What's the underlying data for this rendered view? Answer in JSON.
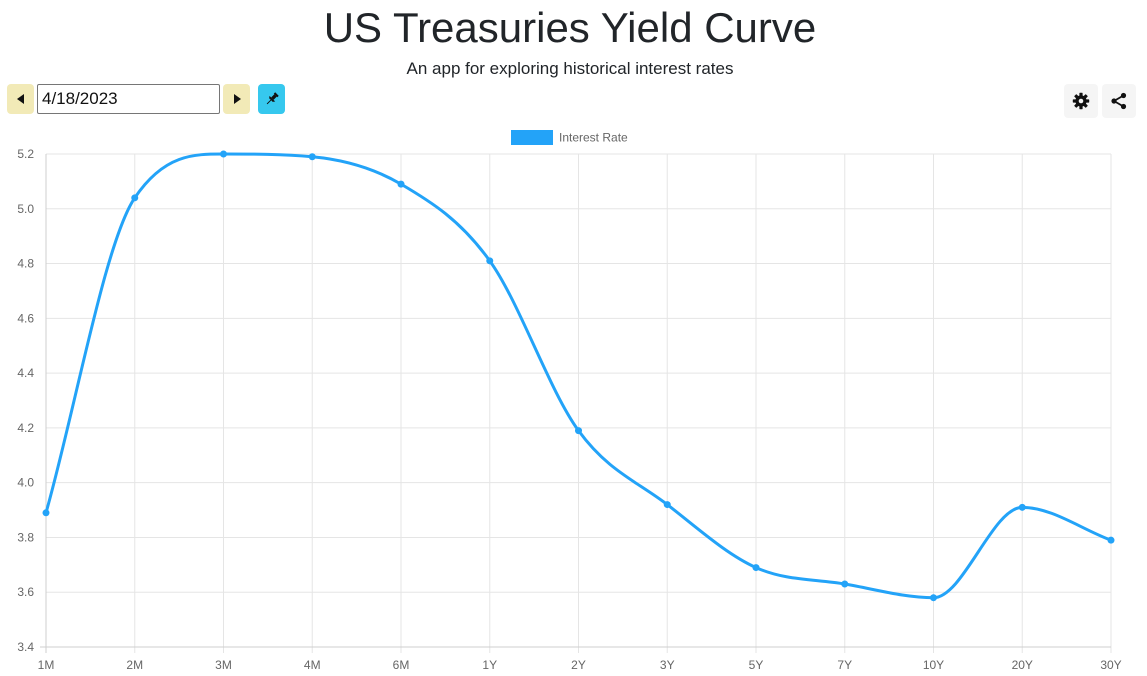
{
  "header": {
    "title": "US Treasuries Yield Curve",
    "subtitle": "An app for exploring historical interest rates"
  },
  "toolbar": {
    "date_value": "4/18/2023",
    "prev_icon": "caret-left-icon",
    "next_icon": "caret-right-icon",
    "pin_icon": "pushpin-icon",
    "settings_icon": "gear-icon",
    "share_icon": "share-icon"
  },
  "colors": {
    "series": "#23a3f8",
    "nav_button": "#f2eab7",
    "pin_button": "#36c8ee",
    "grid": "#e5e5e5"
  },
  "chart_data": {
    "type": "line",
    "categories": [
      "1M",
      "2M",
      "3M",
      "4M",
      "6M",
      "1Y",
      "2Y",
      "3Y",
      "5Y",
      "7Y",
      "10Y",
      "20Y",
      "30Y"
    ],
    "series": [
      {
        "name": "Interest Rate",
        "values": [
          3.89,
          5.04,
          5.2,
          5.19,
          5.09,
          4.81,
          4.19,
          3.92,
          3.69,
          3.63,
          3.58,
          3.91,
          3.79
        ]
      }
    ],
    "ylim": [
      3.4,
      5.2
    ],
    "yticks": [
      "3.4",
      "3.6",
      "3.8",
      "4.0",
      "4.2",
      "4.4",
      "4.6",
      "4.8",
      "5.0",
      "5.2"
    ],
    "legend_position": "top",
    "grid": true,
    "smooth": true
  }
}
